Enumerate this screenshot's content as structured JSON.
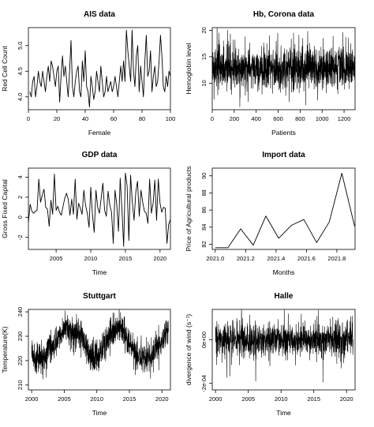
{
  "chart_data": [
    {
      "type": "line",
      "title": "AIS data",
      "xlabel": "Female",
      "ylabel": "Red Cell Count",
      "xlim": [
        0,
        100
      ],
      "ylim": [
        3.75,
        5.35
      ],
      "xticks": [
        0,
        20,
        40,
        60,
        80,
        100
      ],
      "yticks": [
        4.0,
        4.5,
        5.0
      ],
      "xtick_labels": [
        "0",
        "20",
        "40",
        "60",
        "80",
        "100"
      ],
      "ytick_labels": [
        "4.0",
        "4.5",
        "5.0"
      ],
      "series": [
        {
          "x_start": 1,
          "x_step": 1,
          "values": [
            4.1,
            4.0,
            4.3,
            4.4,
            4.0,
            4.2,
            4.5,
            4.3,
            4.2,
            4.5,
            4.3,
            4.1,
            4.4,
            4.6,
            4.3,
            4.7,
            4.6,
            4.4,
            4.2,
            4.5,
            4.6,
            3.9,
            4.4,
            4.8,
            4.4,
            4.6,
            4.3,
            4.0,
            4.5,
            5.1,
            4.2,
            4.0,
            4.3,
            4.5,
            4.6,
            4.1,
            4.0,
            4.7,
            4.3,
            4.9,
            4.2,
            4.1,
            3.8,
            4.4,
            4.2,
            3.95,
            4.1,
            4.5,
            4.3,
            4.1,
            4.6,
            4.3,
            4.0,
            4.1,
            4.4,
            4.1,
            4.2,
            4.3,
            4.1,
            4.2,
            4.4,
            4.2,
            4.0,
            4.3,
            4.6,
            4.3,
            4.7,
            4.3,
            5.3,
            4.9,
            4.6,
            4.3,
            5.3,
            4.5,
            4.2,
            4.8,
            5.0,
            4.1,
            4.6,
            4.3,
            4.0,
            4.7,
            5.2,
            4.4,
            4.5,
            4.9,
            4.1,
            4.4,
            4.6,
            4.2,
            4.3,
            4.7,
            5.2,
            4.8,
            4.2,
            4.1,
            4.4,
            4.2,
            4.5,
            4.4
          ]
        }
      ]
    },
    {
      "type": "line",
      "title": "Hb, Corona data",
      "xlabel": "Patients",
      "ylabel": "Hemoglobin level",
      "xlim": [
        0,
        1300
      ],
      "ylim": [
        5,
        20.5
      ],
      "xticks": [
        0,
        200,
        400,
        600,
        800,
        1000,
        1200
      ],
      "yticks": [
        10,
        15,
        20
      ],
      "xtick_labels": [
        "0",
        "200",
        "400",
        "600",
        "800",
        "1000",
        "1200"
      ],
      "ytick_labels": [
        "10",
        "15",
        "20"
      ],
      "series": [
        {
          "x_start": 1,
          "x_step": 1,
          "n": 1300,
          "mean": 12.8,
          "sd": 1.9,
          "seed": 17,
          "outliers": [
            [
              60,
              19.5
            ],
            [
              140,
              20.0
            ],
            [
              165,
              19.3
            ],
            [
              300,
              18.8
            ],
            [
              520,
              19.0
            ],
            [
              700,
              6.5
            ],
            [
              740,
              19.5
            ],
            [
              850,
              5.9
            ],
            [
              960,
              6.8
            ],
            [
              1010,
              18.5
            ],
            [
              1100,
              18.9
            ],
            [
              1190,
              19.6
            ],
            [
              1260,
              17.5
            ]
          ]
        }
      ]
    },
    {
      "type": "line",
      "title": "GDP data",
      "xlabel": "Time",
      "ylabel": "Gross Fixed Capital",
      "xlim": [
        2001,
        2021.5
      ],
      "ylim": [
        -3.2,
        4.9
      ],
      "xticks": [
        2005,
        2010,
        2015,
        2020
      ],
      "yticks": [
        -2,
        0,
        2,
        4
      ],
      "xtick_labels": [
        "2005",
        "2010",
        "2015",
        "2020"
      ],
      "ytick_labels": [
        "-2",
        "0",
        "2",
        "4"
      ],
      "series": [
        {
          "x_start": 2001,
          "x_step": 0.25,
          "values": [
            -0.5,
            1.3,
            0.6,
            0.4,
            0.6,
            0.7,
            3.8,
            1.5,
            2.2,
            2.8,
            1.0,
            0.8,
            -0.9,
            1.7,
            0.3,
            4.3,
            0.7,
            1.1,
            0.5,
            0.2,
            1.1,
            1.9,
            2.4,
            1.8,
            0.2,
            1.8,
            0.3,
            3.8,
            -0.2,
            1.4,
            0.9,
            0.3,
            2.7,
            1.2,
            0.4,
            -1.0,
            3.0,
            0.2,
            -1.5,
            2.7,
            1.0,
            0.4,
            1.9,
            3.4,
            0.7,
            0.1,
            2.6,
            1.2,
            0.5,
            -2.6,
            2.7,
            1.3,
            -1.4,
            3.9,
            0.8,
            -2.9,
            4.4,
            3.1,
            -2.3,
            4.2,
            1.5,
            -0.3,
            2.5,
            3.6,
            0.1,
            2.7,
            1.5,
            0.6,
            0.4,
            -0.6,
            3.8,
            0.4,
            1.4,
            3.7,
            -0.3,
            3.8,
            1.4,
            0.5,
            1.0,
            0.9,
            -2.6,
            -0.7,
            -0.2,
            2.1
          ]
        }
      ]
    },
    {
      "type": "line",
      "title": "Import data",
      "xlabel": "Months",
      "ylabel": "Price of Agricultural products",
      "xlim": [
        2020.98,
        2021.92
      ],
      "ylim": [
        81.4,
        90.9
      ],
      "xticks": [
        2021.0,
        2021.2,
        2021.4,
        2021.6,
        2021.8
      ],
      "yticks": [
        82,
        84,
        86,
        88,
        90
      ],
      "xtick_labels": [
        "2021.0",
        "2021.2",
        "2021.4",
        "2021.6",
        "2021.8"
      ],
      "ytick_labels": [
        "82",
        "84",
        "86",
        "88",
        "90"
      ],
      "series": [
        {
          "x": [
            2021.0,
            2021.083,
            2021.167,
            2021.25,
            2021.333,
            2021.417,
            2021.5,
            2021.583,
            2021.667,
            2021.75,
            2021.833,
            2021.917
          ],
          "values": [
            81.6,
            81.6,
            83.8,
            81.9,
            85.3,
            82.7,
            84.2,
            84.9,
            82.2,
            84.6,
            90.3,
            84.1
          ]
        }
      ]
    },
    {
      "type": "line",
      "title": "Stuttgart",
      "xlabel": "Time",
      "ylabel": "Temperature(K)",
      "xlim": [
        1999.5,
        2021.3
      ],
      "ylim": [
        208,
        241
      ],
      "xticks": [
        2000,
        2005,
        2010,
        2015,
        2020
      ],
      "yticks": [
        210,
        220,
        230,
        240
      ],
      "xtick_labels": [
        "2000",
        "2005",
        "2010",
        "2015",
        "2020"
      ],
      "ytick_labels": [
        "210",
        "220",
        "230",
        "240"
      ],
      "series": [
        {
          "x_start": 2000,
          "x_end": 2021,
          "n": 1100,
          "seed": 5,
          "noise_sd": 3.2,
          "anchors": [
            [
              2000,
              223
            ],
            [
              2001.5,
              221
            ],
            [
              2003,
              226
            ],
            [
              2005,
              233
            ],
            [
              2007,
              231
            ],
            [
              2008,
              228
            ],
            [
              2009,
              222
            ],
            [
              2010,
              222
            ],
            [
              2012,
              230
            ],
            [
              2013,
              234
            ],
            [
              2014,
              232
            ],
            [
              2015,
              226
            ],
            [
              2016,
              222
            ],
            [
              2018,
              221
            ],
            [
              2019.5,
              226
            ],
            [
              2021,
              232
            ]
          ]
        }
      ]
    },
    {
      "type": "line",
      "title": "Halle",
      "xlabel": "Time",
      "ylabel": "divergence of wind (s⁻¹)",
      "xlim": [
        1999.5,
        2021.3
      ],
      "ylim": [
        -0.00023,
        0.00014
      ],
      "xticks": [
        2000,
        2005,
        2010,
        2015,
        2020
      ],
      "yticks": [
        -0.0002,
        0.0
      ],
      "xtick_labels": [
        "2000",
        "2005",
        "2010",
        "2015",
        "2020"
      ],
      "ytick_labels": [
        "-2e-04",
        "0e+00"
      ],
      "series": [
        {
          "x_start": 2000,
          "x_end": 2021,
          "n": 1100,
          "seed": 29,
          "mean": 0.0,
          "sd": 3.8e-05,
          "outliers": [
            [
              2005.2,
              0.000115
            ],
            [
              2011.1,
              0.00012
            ],
            [
              2016.4,
              -0.000195
            ],
            [
              2017.9,
              0.000105
            ],
            [
              2020.9,
              0.00011
            ],
            [
              2008.3,
              -0.00012
            ],
            [
              2019.2,
              -0.00013
            ]
          ]
        }
      ]
    }
  ]
}
